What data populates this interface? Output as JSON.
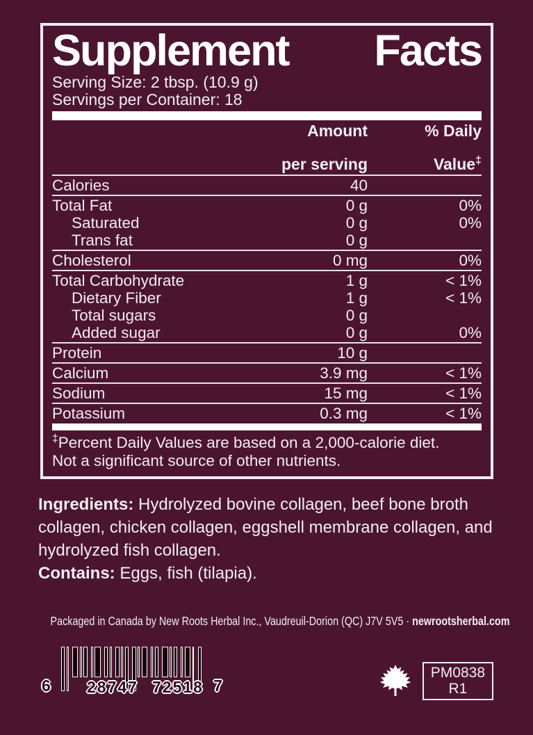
{
  "label": {
    "title_words": [
      "Supplement",
      "Facts"
    ],
    "serving_size": "Serving Size: 2 tbsp. (10.9 g)",
    "servings_per_container": "Servings per Container: 18",
    "columns": {
      "amount_line1": "Amount",
      "amount_line2": "per serving",
      "dv_line1": "% Daily",
      "dv_line2": "Value",
      "dv_sup": "‡"
    },
    "groups": [
      [
        {
          "name": "Calories",
          "amount": "40",
          "dv": "",
          "indent": false
        }
      ],
      [
        {
          "name": "Total Fat",
          "amount": "0 g",
          "dv": "0%",
          "indent": false
        },
        {
          "name": "Saturated",
          "amount": "0 g",
          "dv": "0%",
          "indent": true
        },
        {
          "name": "Trans fat",
          "amount": "0 g",
          "dv": "",
          "indent": true
        }
      ],
      [
        {
          "name": "Cholesterol",
          "amount": "0 mg",
          "dv": "0%",
          "indent": false
        }
      ],
      [
        {
          "name": "Total Carbohydrate",
          "amount": "1 g",
          "dv": "< 1%",
          "indent": false
        },
        {
          "name": "Dietary Fiber",
          "amount": "1 g",
          "dv": "< 1%",
          "indent": true
        },
        {
          "name": "Total sugars",
          "amount": "0 g",
          "dv": "",
          "indent": true
        },
        {
          "name": "Added sugar",
          "amount": "0 g",
          "dv": "0%",
          "indent": true
        }
      ],
      [
        {
          "name": "Protein",
          "amount": "10 g",
          "dv": "",
          "indent": false
        }
      ],
      [
        {
          "name": "Calcium",
          "amount": "3.9 mg",
          "dv": "< 1%",
          "indent": false
        }
      ],
      [
        {
          "name": "Sodium",
          "amount": "15 mg",
          "dv": "< 1%",
          "indent": false
        }
      ],
      [
        {
          "name": "Potassium",
          "amount": "0.3 mg",
          "dv": "< 1%",
          "indent": false
        }
      ]
    ],
    "footnote_sup": "‡",
    "footnote_line1": "Percent Daily Values are based on a 2,000-calorie diet.",
    "footnote_line2": "Not a significant source of other nutrients."
  },
  "ingredients": {
    "label": "Ingredients:",
    "text": " Hydrolyzed bovine collagen, beef bone broth collagen, chicken collagen, eggshell membrane collagen, and hydrolyzed fish collagen."
  },
  "contains": {
    "label": "Contains:",
    "text": " Eggs, fish (tilapia)."
  },
  "footer": {
    "packaged_text": "Packaged in Canada by New Roots Herbal Inc., Vaudreuil-Dorion (QC) J7V 5V5 · ",
    "website": "newrootsherbal.com"
  },
  "barcode": {
    "digits": [
      "6",
      "28747",
      "72518",
      "7"
    ]
  },
  "stamp": {
    "line1": "PM0838",
    "line2": "R1"
  },
  "colors": {
    "background": "#4b1530",
    "text": "#f3edf0",
    "white": "#ffffff"
  }
}
